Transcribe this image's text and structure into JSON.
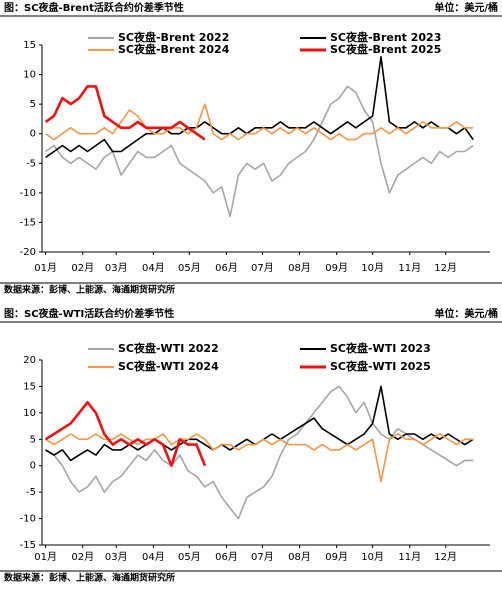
{
  "chart_data": [
    {
      "type": "line",
      "title": "图：SC夜盘-Brent活跃合约价差季节性",
      "unit": "单位：美元/桶",
      "source": "数据来源：彭博、上能源、海通期货研究所",
      "x": [
        1,
        8,
        15,
        22,
        29,
        36,
        43,
        50,
        57,
        64,
        71,
        78,
        85,
        92,
        99,
        106,
        113,
        120,
        127,
        134,
        141,
        148,
        155,
        162,
        169,
        176,
        183,
        190,
        197,
        204,
        211,
        218,
        225,
        232,
        239,
        246,
        253,
        260,
        267,
        274,
        281,
        288,
        295,
        302,
        309,
        316,
        323,
        330,
        337,
        344,
        351,
        358
      ],
      "xlim": [
        -2,
        372
      ],
      "xticks": [
        {
          "value": 1,
          "label": "01月"
        },
        {
          "value": 32,
          "label": "02月"
        },
        {
          "value": 60,
          "label": "03月"
        },
        {
          "value": 91,
          "label": "04月"
        },
        {
          "value": 121,
          "label": "05月"
        },
        {
          "value": 152,
          "label": "06月"
        },
        {
          "value": 182,
          "label": "07月"
        },
        {
          "value": 213,
          "label": "08月"
        },
        {
          "value": 244,
          "label": "09月"
        },
        {
          "value": 274,
          "label": "10月"
        },
        {
          "value": 305,
          "label": "11月"
        },
        {
          "value": 335,
          "label": "12月"
        }
      ],
      "ylim": [
        -20,
        15
      ],
      "yticks": [
        -20,
        -15,
        -10,
        -5,
        0,
        5,
        10,
        15
      ],
      "grid": false,
      "series": [
        {
          "name": "SC夜盘-Brent 2022",
          "color": "#a6a6a6",
          "values": [
            -3,
            -2,
            -4,
            -5,
            -4,
            -5,
            -6,
            -4,
            -3,
            -7,
            -5,
            -3,
            -4,
            -4,
            -3,
            -2,
            -5,
            -6,
            -7,
            -8,
            -10,
            -9,
            -14,
            -7,
            -5,
            -6,
            -5,
            -8,
            -7,
            -5,
            -4,
            -3,
            -1,
            2,
            5,
            6,
            8,
            7,
            4,
            2,
            -5,
            -10,
            -7,
            -6,
            -5,
            -4,
            -5,
            -3,
            -4,
            -3,
            -3,
            -2
          ]
        },
        {
          "name": "SC夜盘-Brent 2023",
          "color": "#000000",
          "values": [
            -4,
            -3,
            -2,
            -3,
            -2,
            -3,
            -2,
            -1,
            -3,
            -3,
            -2,
            -1,
            0,
            0,
            1,
            0,
            0,
            1,
            1,
            2,
            1,
            0,
            0,
            1,
            0,
            1,
            1,
            1,
            2,
            1,
            1,
            1,
            2,
            1,
            0,
            1,
            2,
            1,
            2,
            3,
            13,
            2,
            1,
            1,
            2,
            1,
            2,
            1,
            1,
            0,
            1,
            -1
          ]
        },
        {
          "name": "SC夜盘-Brent 2024",
          "color": "#f79646",
          "values": [
            0,
            -1,
            0,
            1,
            0,
            0,
            0,
            1,
            0,
            2,
            4,
            3,
            1,
            0,
            0,
            1,
            1,
            0,
            1,
            5,
            0,
            -1,
            0,
            -1,
            0,
            0,
            1,
            0,
            1,
            0,
            1,
            0,
            1,
            0,
            -1,
            0,
            -1,
            -1,
            0,
            0,
            1,
            0,
            1,
            0,
            1,
            2,
            1,
            1,
            1,
            2,
            1,
            1
          ]
        },
        {
          "name": "SC夜盘-Brent 2025",
          "color": "#ee1111",
          "values": [
            2,
            3,
            6,
            5,
            6,
            8,
            8,
            3,
            2,
            1,
            1,
            2,
            1,
            1,
            1,
            1,
            2,
            1,
            0,
            -1,
            null,
            null,
            null,
            null,
            null,
            null,
            null,
            null,
            null,
            null,
            null,
            null,
            null,
            null,
            null,
            null,
            null,
            null,
            null,
            null,
            null,
            null,
            null,
            null,
            null,
            null,
            null,
            null,
            null,
            null,
            null,
            null
          ]
        }
      ]
    },
    {
      "type": "line",
      "title": "图：SC夜盘-WTI活跃合约价差季节性",
      "unit": "单位：美元/桶",
      "source": "数据来源：彭博、上能源、海通期货研究所",
      "x": [
        1,
        8,
        15,
        22,
        29,
        36,
        43,
        50,
        57,
        64,
        71,
        78,
        85,
        92,
        99,
        106,
        113,
        120,
        127,
        134,
        141,
        148,
        155,
        162,
        169,
        176,
        183,
        190,
        197,
        204,
        211,
        218,
        225,
        232,
        239,
        246,
        253,
        260,
        267,
        274,
        281,
        288,
        295,
        302,
        309,
        316,
        323,
        330,
        337,
        344,
        351,
        358
      ],
      "xlim": [
        -2,
        372
      ],
      "xticks": [
        {
          "value": 1,
          "label": "01月"
        },
        {
          "value": 32,
          "label": "02月"
        },
        {
          "value": 60,
          "label": "03月"
        },
        {
          "value": 91,
          "label": "04月"
        },
        {
          "value": 121,
          "label": "05月"
        },
        {
          "value": 152,
          "label": "06月"
        },
        {
          "value": 182,
          "label": "07月"
        },
        {
          "value": 213,
          "label": "08月"
        },
        {
          "value": 244,
          "label": "09月"
        },
        {
          "value": 274,
          "label": "10月"
        },
        {
          "value": 305,
          "label": "11月"
        },
        {
          "value": 335,
          "label": "12月"
        }
      ],
      "ylim": [
        -15,
        20
      ],
      "yticks": [
        -15,
        -10,
        -5,
        0,
        5,
        10,
        15,
        20
      ],
      "grid": false,
      "series": [
        {
          "name": "SC夜盘-WTI 2022",
          "color": "#a6a6a6",
          "values": [
            3,
            2,
            0,
            -3,
            -5,
            -4,
            -2,
            -5,
            -3,
            -2,
            0,
            2,
            1,
            3,
            1,
            0,
            2,
            -1,
            -2,
            -4,
            -3,
            -6,
            -8,
            -10,
            -6,
            -5,
            -4,
            -2,
            2,
            5,
            6,
            8,
            10,
            12,
            14,
            15,
            13,
            10,
            12,
            8,
            6,
            5,
            7,
            6,
            5,
            4,
            3,
            2,
            1,
            0,
            1,
            1
          ]
        },
        {
          "name": "SC夜盘-WTI 2023",
          "color": "#000000",
          "values": [
            3,
            2,
            3,
            1,
            2,
            3,
            2,
            4,
            3,
            3,
            4,
            3,
            4,
            5,
            4,
            3,
            4,
            5,
            5,
            4,
            3,
            4,
            3,
            4,
            5,
            4,
            5,
            6,
            5,
            6,
            7,
            8,
            9,
            7,
            6,
            5,
            4,
            5,
            6,
            8,
            15,
            6,
            5,
            6,
            6,
            5,
            6,
            5,
            6,
            5,
            4,
            5
          ]
        },
        {
          "name": "SC夜盘-WTI 2024",
          "color": "#f79646",
          "values": [
            5,
            4,
            5,
            6,
            5,
            5,
            6,
            5,
            5,
            6,
            5,
            4,
            5,
            5,
            6,
            4,
            5,
            5,
            6,
            5,
            3,
            4,
            4,
            3,
            4,
            4,
            5,
            4,
            5,
            4,
            4,
            4,
            3,
            4,
            3,
            3,
            4,
            3,
            4,
            5,
            -3,
            5,
            6,
            5,
            5,
            4,
            5,
            6,
            5,
            4,
            5,
            5
          ]
        },
        {
          "name": "SC夜盘-WTI 2025",
          "color": "#ee1111",
          "values": [
            5,
            6,
            7,
            8,
            10,
            12,
            10,
            6,
            4,
            5,
            4,
            5,
            4,
            5,
            4,
            0,
            5,
            4,
            4,
            0,
            null,
            null,
            null,
            null,
            null,
            null,
            null,
            null,
            null,
            null,
            null,
            null,
            null,
            null,
            null,
            null,
            null,
            null,
            null,
            null,
            null,
            null,
            null,
            null,
            null,
            null,
            null,
            null,
            null,
            null,
            null,
            null
          ]
        }
      ]
    }
  ]
}
